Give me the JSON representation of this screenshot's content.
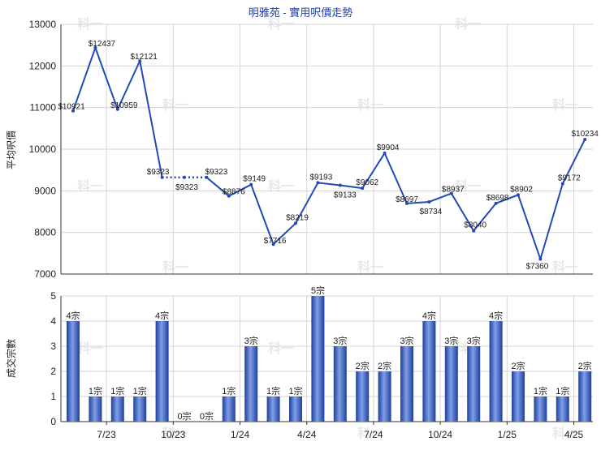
{
  "chart_data": [
    {
      "type": "line",
      "title": "明雅苑 - 實用呎價走勢",
      "ylabel": "平均呎價",
      "ylim": [
        7000,
        13000
      ],
      "yticks": [
        7000,
        8000,
        9000,
        10000,
        11000,
        12000,
        13000
      ],
      "grid": true,
      "series": [
        {
          "values": [
            10921,
            12437,
            10959,
            12121,
            9323,
            9323,
            9323,
            8876,
            9149,
            7716,
            8219,
            9193,
            9133,
            9062,
            9904,
            8697,
            8734,
            8937,
            8040,
            8698,
            8902,
            7360,
            9172,
            10234
          ],
          "labels": [
            "$10921",
            "$12437",
            "$10959",
            "$12121",
            "$9323",
            "$9323",
            "$9323",
            "$8876",
            "$9149",
            "$7716",
            "$8219",
            "$9193",
            "$9133",
            "$9062",
            "$9904",
            "$8697",
            "$8734",
            "$8937",
            "$8040",
            "$8698",
            "$8902",
            "$7360",
            "$9172",
            "$10234"
          ],
          "dotted_segments": [
            [
              4,
              5
            ],
            [
              5,
              6
            ]
          ]
        }
      ]
    },
    {
      "type": "bar",
      "ylabel": "成交宗數",
      "ylim": [
        0,
        5
      ],
      "yticks": [
        0,
        1,
        2,
        3,
        4,
        5
      ],
      "xticks": [
        "7/23",
        "10/23",
        "1/24",
        "4/24",
        "7/24",
        "10/24",
        "1/25",
        "4/25"
      ],
      "values": [
        4,
        1,
        1,
        1,
        4,
        0,
        0,
        1,
        3,
        1,
        1,
        5,
        3,
        2,
        2,
        3,
        4,
        3,
        3,
        4,
        2,
        1,
        1,
        2
      ],
      "labels": [
        "4宗",
        "1宗",
        "1宗",
        "1宗",
        "4宗",
        "0宗",
        "0宗",
        "1宗",
        "3宗",
        "1宗",
        "1宗",
        "5宗",
        "3宗",
        "2宗",
        "2宗",
        "3宗",
        "4宗",
        "3宗",
        "3宗",
        "4宗",
        "2宗",
        "1宗",
        "1宗",
        "2宗"
      ]
    }
  ],
  "watermark": "科一"
}
